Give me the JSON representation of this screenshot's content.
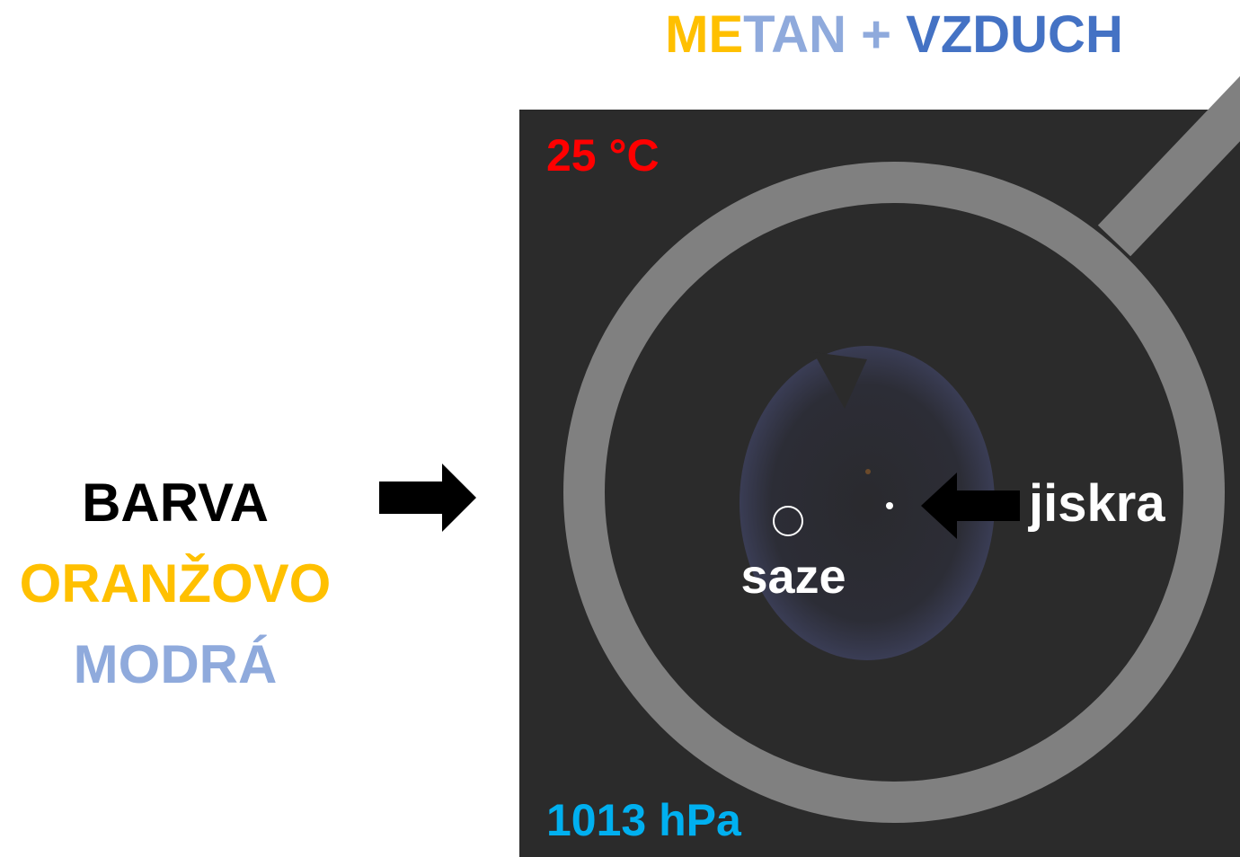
{
  "title_parts": [
    "ME",
    "TAN",
    " + ",
    "VZDUCH"
  ],
  "left_labels": [
    "BARVA",
    "ORANŽOVO",
    "MODRÁ"
  ],
  "temperature": "25 °C",
  "pressure": "1013 hPa",
  "soot_label": "saze",
  "spark_label": "jiskra"
}
